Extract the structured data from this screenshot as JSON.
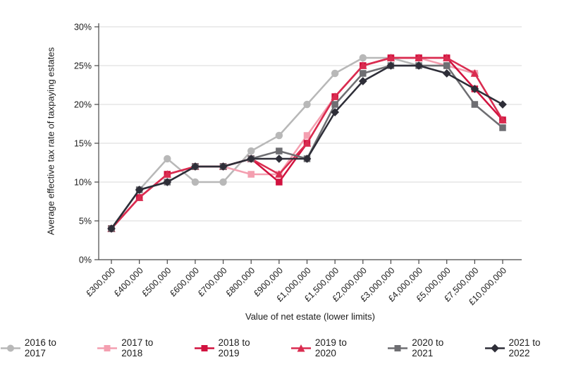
{
  "chart_data": {
    "type": "line",
    "title": "",
    "xlabel": "Value of net estate (lower limits)",
    "ylabel": "Average effective tax rate of taxpaying estates",
    "categories": [
      "£300,000",
      "£400,000",
      "£500,000",
      "£600,000",
      "£700,000",
      "£800,000",
      "£900,000",
      "£1,000,000",
      "£1,500,000",
      "£2,000,000",
      "£3,000,000",
      "£4,000,000",
      "£5,000,000",
      "£7,500,000",
      "£10,000,000"
    ],
    "yticks": [
      0,
      5,
      10,
      15,
      20,
      25,
      30
    ],
    "ylim": [
      0,
      30
    ],
    "ytick_suffix": "%",
    "grid": "horizontal",
    "legend_position": "bottom",
    "series": [
      {
        "name": "2016 to 2017",
        "marker": "circle",
        "color": "#b8b8b8",
        "values": [
          4,
          9,
          13,
          10,
          10,
          14,
          16,
          20,
          24,
          26,
          26,
          25,
          25,
          24,
          18
        ]
      },
      {
        "name": "2017 to 2018",
        "marker": "square",
        "color": "#f49fb0",
        "values": [
          4,
          8,
          11,
          12,
          12,
          11,
          11,
          16,
          21,
          25,
          26,
          26,
          25,
          24,
          18
        ]
      },
      {
        "name": "2018 to 2019",
        "marker": "square",
        "color": "#d1123f",
        "values": [
          4,
          8,
          11,
          12,
          12,
          13,
          10,
          15,
          21,
          25,
          26,
          26,
          26,
          22,
          18
        ]
      },
      {
        "name": "2019 to 2020",
        "marker": "triangle",
        "color": "#da2c50",
        "values": [
          4,
          8,
          11,
          12,
          12,
          13,
          11,
          15,
          21,
          25,
          26,
          26,
          26,
          24,
          18
        ]
      },
      {
        "name": "2020 to 2021",
        "marker": "square",
        "color": "#6e6e72",
        "values": [
          4,
          9,
          10,
          12,
          12,
          13,
          14,
          13,
          20,
          24,
          25,
          25,
          25,
          20,
          17
        ]
      },
      {
        "name": "2021 to 2022",
        "marker": "diamond",
        "color": "#2e2e38",
        "values": [
          4,
          9,
          10,
          12,
          12,
          13,
          13,
          13,
          19,
          23,
          25,
          25,
          24,
          22,
          20
        ]
      }
    ],
    "colors": {
      "grid": "#d9d9d9",
      "axis": "#474747",
      "tick_text": "#1c1c1c"
    }
  }
}
